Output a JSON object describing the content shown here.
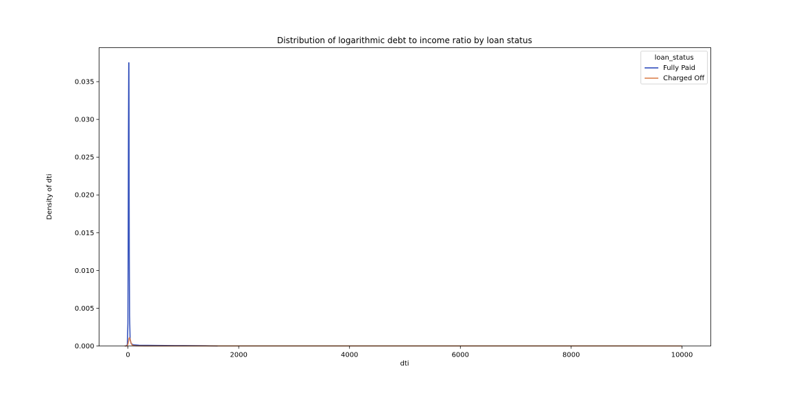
{
  "chart_data": {
    "type": "line",
    "title": "Distribution of logarithmic debt to income ratio by loan status",
    "xlabel": "dti",
    "ylabel": "Density of dti",
    "xlim": [
      -520,
      10520
    ],
    "ylim": [
      0,
      0.0395
    ],
    "x_ticks": [
      0,
      2000,
      4000,
      6000,
      8000,
      10000
    ],
    "y_ticks": [
      0.0,
      0.005,
      0.01,
      0.015,
      0.02,
      0.025,
      0.03,
      0.035
    ],
    "y_tick_labels": [
      "0.000",
      "0.005",
      "0.010",
      "0.015",
      "0.020",
      "0.025",
      "0.030",
      "0.035"
    ],
    "grid": false,
    "legend": {
      "title": "loan_status",
      "position": "top-right"
    },
    "series": [
      {
        "name": "Fully Paid",
        "color": "#1f3fb5",
        "x": [
          -50,
          -25,
          -10,
          0,
          5,
          10,
          15,
          18,
          20,
          22,
          25,
          30,
          40,
          60,
          100,
          200,
          500,
          1000,
          1400,
          1620
        ],
        "y": [
          0,
          0,
          0.0002,
          0.003,
          0.013,
          0.028,
          0.0375,
          0.0375,
          0.032,
          0.022,
          0.012,
          0.004,
          0.0008,
          0.0003,
          0.00015,
          0.0001,
          7e-05,
          5e-05,
          3e-05,
          0
        ]
      },
      {
        "name": "Charged Off",
        "color": "#d97840",
        "x": [
          -60,
          -20,
          0,
          10,
          20,
          30,
          40,
          50,
          60,
          80,
          100,
          150,
          300,
          1000,
          3000,
          6000,
          9000,
          10000
        ],
        "y": [
          0,
          0,
          0.0002,
          0.0006,
          0.001,
          0.0011,
          0.0009,
          0.0006,
          0.0003,
          0.0001,
          4e-05,
          2e-05,
          1e-05,
          5e-06,
          5e-06,
          5e-06,
          5e-06,
          0
        ]
      }
    ]
  }
}
